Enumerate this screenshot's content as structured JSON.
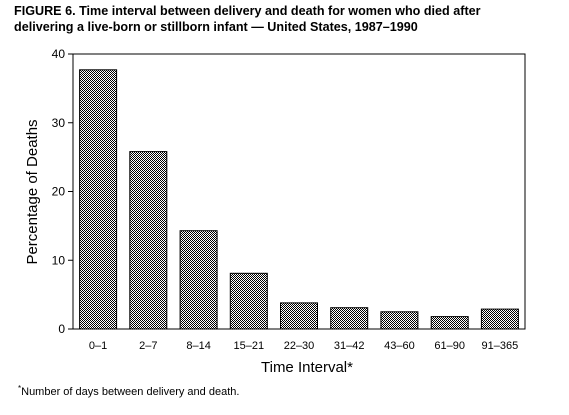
{
  "title_lines": [
    "FIGURE 6. Time interval between delivery and death for women who died after",
    "delivering a live-born or stillborn infant — United States, 1987–1990"
  ],
  "footnote": {
    "marker": "*",
    "text": "Number of days between delivery and death."
  },
  "colors": {
    "bar_pattern_dark": "#000000",
    "bar_pattern_light": "#ffffff",
    "axis": "#000000"
  },
  "chart_data": {
    "type": "bar",
    "title": "FIGURE 6. Time interval between delivery and death for women who died after delivering a live-born or stillborn infant — United States, 1987–1990",
    "xlabel": "Time Interval*",
    "ylabel": "Percentage of Deaths",
    "categories": [
      "0–1",
      "2–7",
      "8–14",
      "15–21",
      "22–30",
      "31–42",
      "43–60",
      "61–90",
      "91–365"
    ],
    "values": [
      37.7,
      25.8,
      14.3,
      8.1,
      3.8,
      3.1,
      2.5,
      1.8,
      2.9
    ],
    "ylim": [
      0,
      40
    ],
    "yticks": [
      "0",
      "10",
      "20",
      "30",
      "40"
    ],
    "grid": false,
    "legend": "none"
  }
}
